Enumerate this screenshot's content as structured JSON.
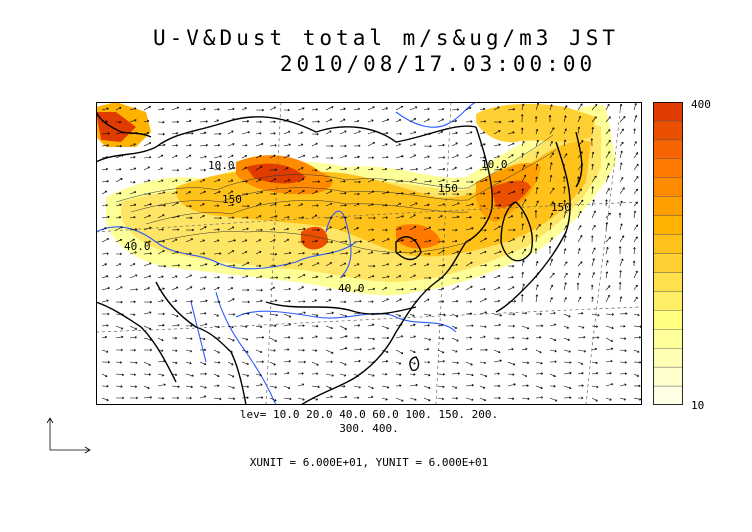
{
  "title": {
    "line1": "U-V&Dust total m/s&ug/m3 JST",
    "line2": "2010/08/17.03:00:00"
  },
  "colorbar": {
    "max_label": "400",
    "min_label": "10",
    "colors": [
      "#ffffe6",
      "#ffffcc",
      "#ffffb3",
      "#ffff99",
      "#ffff80",
      "#ffef66",
      "#ffe04d",
      "#ffd033",
      "#ffc21a",
      "#ffb300",
      "#ff9f00",
      "#ff8c00",
      "#ff7800",
      "#f56400",
      "#eb5000",
      "#e13c00"
    ]
  },
  "levels": {
    "line1": "lev= 10.0 20.0 40.0 60.0 100. 150. 200.",
    "line2": "300. 400."
  },
  "units": "XUNIT = 6.000E+01, YUNIT = 6.000E+01",
  "contour_labels": [
    "10.0",
    "150",
    "40.0",
    "150",
    "10.0",
    "40.0",
    "150"
  ],
  "colors": {
    "coastline": "#000000",
    "rivers": "#2b5cff",
    "frame": "#000000"
  }
}
